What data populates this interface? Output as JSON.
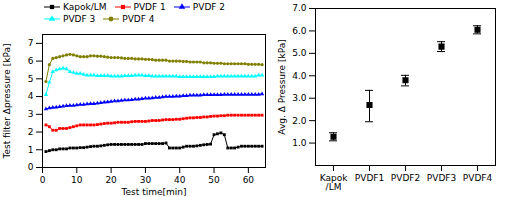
{
  "chart_data": [
    {
      "type": "line",
      "xlabel": "Test time[min]",
      "ylabel": "Test filter Δpressure [kPa]",
      "xlim": [
        0,
        65
      ],
      "xticks": [
        0,
        10,
        20,
        30,
        40,
        50,
        60
      ],
      "ylim": [
        0,
        7.5
      ],
      "yticks": [
        0,
        1,
        2,
        3,
        4,
        5,
        6,
        7
      ],
      "legend": "top",
      "x": [
        1,
        2,
        3,
        4,
        5,
        6,
        7,
        8,
        9,
        10,
        11,
        12,
        13,
        14,
        15,
        16,
        17,
        18,
        19,
        20,
        21,
        22,
        23,
        24,
        25,
        26,
        27,
        28,
        29,
        30,
        31,
        32,
        33,
        34,
        35,
        36,
        37,
        38,
        39,
        40,
        41,
        42,
        43,
        44,
        45,
        46,
        47,
        48,
        49,
        50,
        51,
        52,
        53,
        54,
        55,
        56,
        57,
        58,
        59,
        60,
        61,
        62,
        63,
        64
      ],
      "series": [
        {
          "name": "Kapok/LM",
          "color": "black",
          "marker": "square",
          "values": [
            0.9,
            0.95,
            1.0,
            1.0,
            1.05,
            1.05,
            1.05,
            1.1,
            1.1,
            1.1,
            1.12,
            1.12,
            1.15,
            1.18,
            1.2,
            1.2,
            1.22,
            1.25,
            1.28,
            1.3,
            1.3,
            1.3,
            1.3,
            1.3,
            1.3,
            1.3,
            1.3,
            1.3,
            1.3,
            1.35,
            1.35,
            1.35,
            1.35,
            1.35,
            1.35,
            1.38,
            1.1,
            1.1,
            1.1,
            1.1,
            1.15,
            1.2,
            1.2,
            1.2,
            1.22,
            1.25,
            1.28,
            1.3,
            1.32,
            1.85,
            1.9,
            1.95,
            1.85,
            1.1,
            1.1,
            1.1,
            1.15,
            1.2,
            1.2,
            1.2,
            1.2,
            1.2,
            1.2,
            1.2
          ]
        },
        {
          "name": "PVDF 1",
          "color": "red",
          "marker": "square",
          "values": [
            2.4,
            2.3,
            2.1,
            2.1,
            2.2,
            2.2,
            2.2,
            2.25,
            2.3,
            2.35,
            2.4,
            2.4,
            2.4,
            2.4,
            2.4,
            2.42,
            2.45,
            2.48,
            2.5,
            2.5,
            2.52,
            2.55,
            2.55,
            2.55,
            2.55,
            2.58,
            2.6,
            2.6,
            2.6,
            2.6,
            2.62,
            2.65,
            2.65,
            2.65,
            2.68,
            2.7,
            2.7,
            2.7,
            2.72,
            2.72,
            2.75,
            2.78,
            2.8,
            2.8,
            2.82,
            2.82,
            2.85,
            2.85,
            2.88,
            2.9,
            2.9,
            2.92,
            2.92,
            2.95,
            2.95,
            2.95,
            2.95,
            2.95,
            2.95,
            2.95,
            2.95,
            2.95,
            2.95,
            2.95
          ]
        },
        {
          "name": "PVDF 2",
          "color": "blue",
          "marker": "triangle",
          "values": [
            3.3,
            3.35,
            3.38,
            3.4,
            3.42,
            3.45,
            3.48,
            3.5,
            3.5,
            3.52,
            3.55,
            3.55,
            3.58,
            3.6,
            3.6,
            3.62,
            3.65,
            3.68,
            3.7,
            3.72,
            3.75,
            3.75,
            3.78,
            3.8,
            3.8,
            3.82,
            3.85,
            3.85,
            3.88,
            3.9,
            3.9,
            3.92,
            3.95,
            3.95,
            3.98,
            4.0,
            4.0,
            4.0,
            4.02,
            4.02,
            4.05,
            4.05,
            4.07,
            4.07,
            4.08,
            4.08,
            4.1,
            4.1,
            4.1,
            4.1,
            4.1,
            4.1,
            4.12,
            4.12,
            4.12,
            4.12,
            4.12,
            4.12,
            4.12,
            4.12,
            4.12,
            4.12,
            4.12,
            4.15
          ]
        },
        {
          "name": "PVDF 3",
          "color": "cyan",
          "marker": "triangle",
          "values": [
            4.1,
            4.8,
            5.4,
            5.5,
            5.55,
            5.6,
            5.55,
            5.4,
            5.35,
            5.3,
            5.3,
            5.25,
            5.2,
            5.2,
            5.2,
            5.18,
            5.18,
            5.18,
            5.18,
            5.15,
            5.15,
            5.15,
            5.15,
            5.18,
            5.18,
            5.18,
            5.2,
            5.2,
            5.2,
            5.18,
            5.18,
            5.15,
            5.15,
            5.15,
            5.15,
            5.15,
            5.15,
            5.15,
            5.15,
            5.12,
            5.12,
            5.12,
            5.12,
            5.12,
            5.12,
            5.12,
            5.12,
            5.12,
            5.12,
            5.12,
            5.15,
            5.15,
            5.15,
            5.15,
            5.15,
            5.15,
            5.15,
            5.15,
            5.15,
            5.15,
            5.15,
            5.15,
            5.2,
            5.2
          ]
        },
        {
          "name": "PVDF 4",
          "color": "#808000",
          "marker": "circle",
          "values": [
            4.85,
            5.8,
            6.15,
            6.2,
            6.25,
            6.3,
            6.35,
            6.38,
            6.35,
            6.3,
            6.25,
            6.25,
            6.25,
            6.3,
            6.3,
            6.28,
            6.28,
            6.25,
            6.22,
            6.2,
            6.2,
            6.2,
            6.18,
            6.15,
            6.15,
            6.15,
            6.12,
            6.12,
            6.12,
            6.1,
            6.1,
            6.08,
            6.05,
            6.05,
            6.05,
            6.05,
            6.0,
            6.0,
            6.0,
            6.0,
            5.98,
            5.98,
            5.95,
            5.95,
            5.95,
            5.95,
            5.9,
            5.9,
            5.9,
            5.88,
            5.88,
            5.88,
            5.85,
            5.85,
            5.85,
            5.85,
            5.85,
            5.85,
            5.85,
            5.82,
            5.82,
            5.82,
            5.82,
            5.8
          ]
        }
      ]
    },
    {
      "type": "errorbar",
      "ylabel": "Avg. Δ Pressure [kPa]",
      "ylim": [
        0,
        7
      ],
      "yticks": [
        1,
        2,
        3,
        4,
        5,
        6,
        7
      ],
      "categories": [
        "Kapok\n/LM",
        "PVDF1",
        "PVDF2",
        "PVDF3",
        "PVDF4"
      ],
      "values": [
        1.28,
        2.7,
        3.8,
        5.3,
        6.05
      ],
      "error_low": [
        0.18,
        0.75,
        0.25,
        0.22,
        0.18
      ],
      "error_high": [
        0.18,
        0.65,
        0.22,
        0.22,
        0.18
      ],
      "color": "black",
      "marker": "square"
    }
  ]
}
